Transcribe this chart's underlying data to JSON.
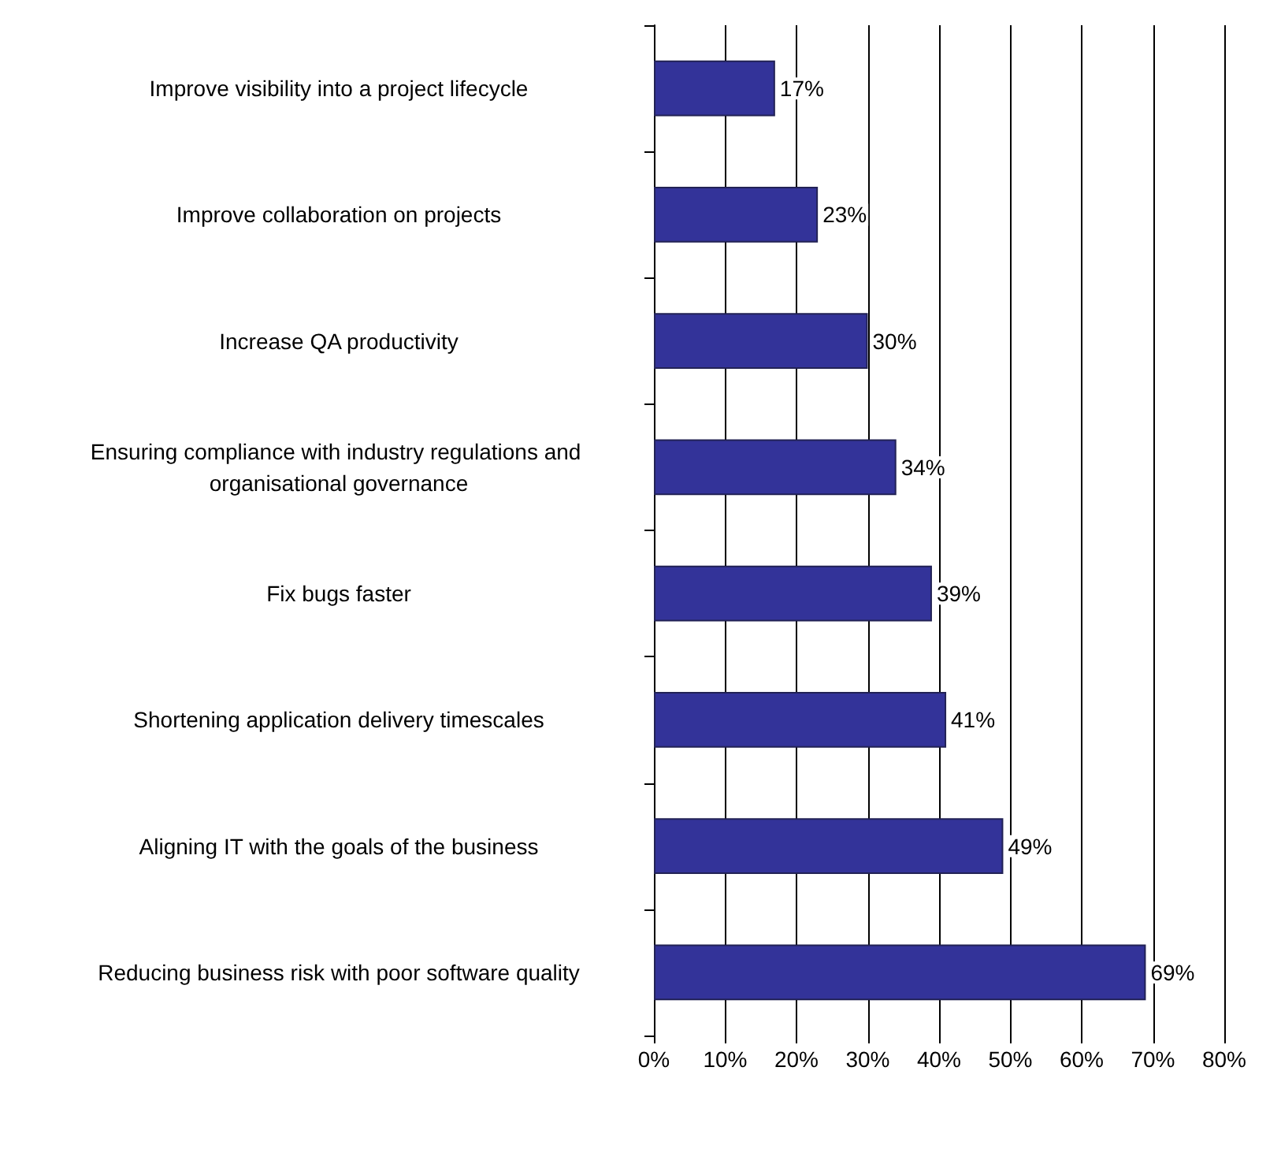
{
  "chart_data": {
    "type": "bar",
    "orientation": "horizontal",
    "categories": [
      "Improve visibility into a project lifecycle",
      "Improve collaboration on projects",
      "Increase QA productivity",
      "Ensuring compliance with industry regulations and organisational governance",
      "Fix bugs faster",
      "Shortening application delivery timescales",
      "Aligning IT with the goals of the business",
      "Reducing business risk with poor software quality"
    ],
    "values": [
      17,
      23,
      30,
      34,
      39,
      41,
      49,
      69
    ],
    "value_labels": [
      "17%",
      "23%",
      "30%",
      "34%",
      "39%",
      "41%",
      "49%",
      "69%"
    ],
    "color": "#333399",
    "xlim": [
      0,
      80
    ],
    "xticks": [
      {
        "value": 0,
        "label": "0%"
      },
      {
        "value": 10,
        "label": "10%"
      },
      {
        "value": 20,
        "label": "20%"
      },
      {
        "value": 30,
        "label": "30%"
      },
      {
        "value": 40,
        "label": "40%"
      },
      {
        "value": 50,
        "label": "50%"
      },
      {
        "value": 60,
        "label": "60%"
      },
      {
        "value": 70,
        "label": "70%"
      },
      {
        "value": 80,
        "label": "80%"
      }
    ],
    "grid": "x"
  }
}
